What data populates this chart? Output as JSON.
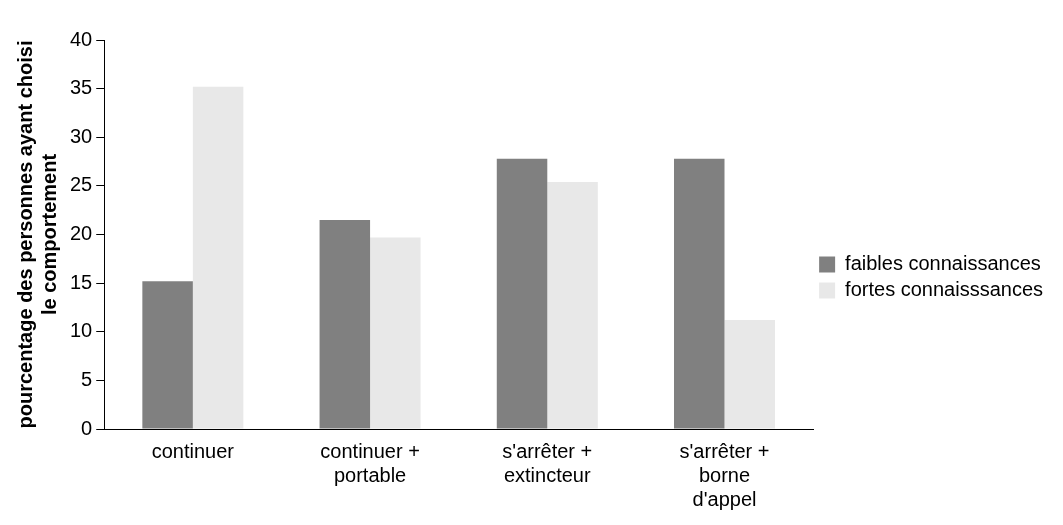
{
  "chart_data": {
    "type": "bar",
    "ylabel": "pourcentage des personnes ayant choisi le comportement",
    "categories": [
      "continuer",
      "continuer + portable",
      "s'arrêter + extincteur",
      "s'arrêter + borne d'appel"
    ],
    "series": [
      {
        "name": "faibles connaissances",
        "color": "#808080",
        "values": [
          15.2,
          21.5,
          27.8,
          27.8
        ]
      },
      {
        "name": "fortes connaisssances",
        "color": "#e8e8e8",
        "values": [
          35.2,
          19.7,
          25.4,
          11.2
        ]
      }
    ],
    "ylim": [
      0,
      40
    ],
    "yticks": [
      0,
      5,
      10,
      15,
      20,
      25,
      30,
      35,
      40
    ],
    "grid": false,
    "legend": "right"
  }
}
